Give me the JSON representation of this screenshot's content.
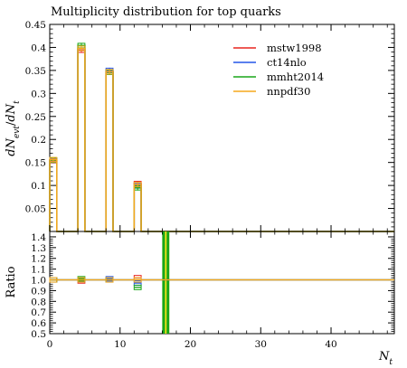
{
  "chart_data": {
    "type": "line",
    "title": "Multiplicity distribution for top quarks",
    "xlabel": "N_t",
    "ylabel_main": "dN_evt/dN_t",
    "ylabel_ratio": "Ratio",
    "xlim": [
      0,
      49
    ],
    "main_ylim": [
      0,
      0.45
    ],
    "ratio_ylim": [
      0.5,
      1.45
    ],
    "bins": [
      {
        "low": 0,
        "high": 1
      },
      {
        "low": 4,
        "high": 5
      },
      {
        "low": 8,
        "high": 9
      },
      {
        "low": 12,
        "high": 13
      },
      {
        "low": 16,
        "high": 17
      }
    ],
    "series": [
      {
        "name": "mstw1998",
        "color": "#e8251f",
        "values": [
          0.154,
          0.394,
          0.347,
          0.104,
          0.0
        ],
        "ratio": [
          1.0,
          0.99,
          1.0,
          1.02,
          1.0
        ]
      },
      {
        "name": "ct14nlo",
        "color": "#2457e8",
        "values": [
          0.155,
          0.398,
          0.35,
          0.099,
          0.0
        ],
        "ratio": [
          1.0,
          1.0,
          1.01,
          0.97,
          1.0
        ]
      },
      {
        "name": "mmht2014",
        "color": "#19a619",
        "values": [
          0.155,
          0.404,
          0.346,
          0.095,
          0.0
        ],
        "ratio": [
          1.0,
          1.01,
          1.0,
          0.93,
          1.0
        ]
      },
      {
        "name": "nnpdf30",
        "color": "#f5a81c",
        "values": [
          0.156,
          0.398,
          0.347,
          0.102,
          0.0
        ],
        "ratio": [
          1.0,
          1.0,
          1.0,
          1.0,
          1.0
        ]
      }
    ],
    "main_ticks": [
      "0.05",
      "0.1",
      "0.15",
      "0.2",
      "0.25",
      "0.3",
      "0.35",
      "0.4",
      "0.45"
    ],
    "ratio_ticks": [
      "0.5",
      "0.6",
      "0.7",
      "0.8",
      "0.9",
      "1.0",
      "1.1",
      "1.2",
      "1.3",
      "1.4"
    ],
    "x_ticks": [
      "0",
      "10",
      "20",
      "30",
      "40"
    ],
    "legend_position": "top-right"
  }
}
